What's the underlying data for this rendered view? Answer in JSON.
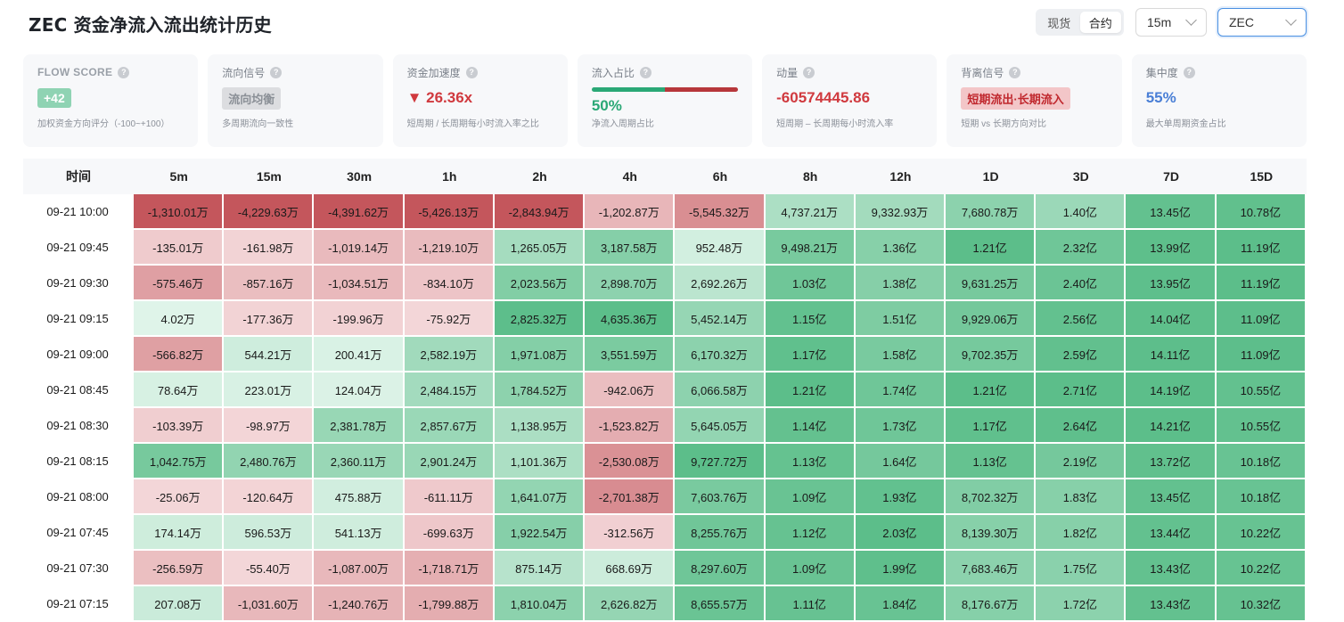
{
  "title": "ZEC 资金净流入流出统计历史",
  "market_toggle": {
    "options": [
      "现货",
      "合约"
    ],
    "active": 1
  },
  "interval_select": {
    "value": "15m"
  },
  "symbol_select": {
    "value": "ZEC"
  },
  "cards": [
    {
      "label": "FLOW SCORE",
      "value": "+42",
      "sub": "加权资金方向评分（-100~+100）"
    },
    {
      "label": "流向信号",
      "value": "流向均衡",
      "sub": "多周期流向一致性"
    },
    {
      "label": "资金加速度",
      "value": "▼ 26.36x",
      "sub": "短周期 / 长周期每小时流入率之比"
    },
    {
      "label": "流入占比",
      "value": "50%",
      "sub": "净流入周期占比",
      "inflow_fraction": 0.5
    },
    {
      "label": "动量",
      "value": "-60574445.86",
      "sub": "短周期 – 长周期每小时流入率"
    },
    {
      "label": "背离信号",
      "value": "短期流出·长期流入",
      "sub": "短期 vs 长期方向对比"
    },
    {
      "label": "集中度",
      "value": "55%",
      "sub": "最大单周期资金占比"
    }
  ],
  "colors": {
    "positive": "#2aa876",
    "negative": "#d0393e",
    "score_badge": "#8fd3b3",
    "neutral_badge": "#dcdde0",
    "divergence_badge": "#f3c6c8",
    "concentration": "#4a7fd6"
  },
  "table": {
    "columns": [
      "时间",
      "5m",
      "15m",
      "30m",
      "1h",
      "2h",
      "4h",
      "6h",
      "8h",
      "12h",
      "1D",
      "3D",
      "7D",
      "15D"
    ],
    "rows": [
      [
        "09-21 10:00",
        "-1,310.01万",
        "-4,229.63万",
        "-4,391.62万",
        "-5,426.13万",
        "-2,843.94万",
        "-1,202.87万",
        "-5,545.32万",
        "4,737.21万",
        "9,332.93万",
        "7,680.78万",
        "1.40亿",
        "13.45亿",
        "10.78亿"
      ],
      [
        "09-21 09:45",
        "-135.01万",
        "-161.98万",
        "-1,019.14万",
        "-1,219.10万",
        "1,265.05万",
        "3,187.58万",
        "952.48万",
        "9,498.21万",
        "1.36亿",
        "1.21亿",
        "2.32亿",
        "13.99亿",
        "11.19亿"
      ],
      [
        "09-21 09:30",
        "-575.46万",
        "-857.16万",
        "-1,034.51万",
        "-834.10万",
        "2,023.56万",
        "2,898.70万",
        "2,692.26万",
        "1.03亿",
        "1.38亿",
        "9,631.25万",
        "2.40亿",
        "13.95亿",
        "11.19亿"
      ],
      [
        "09-21 09:15",
        "4.02万",
        "-177.36万",
        "-199.96万",
        "-75.92万",
        "2,825.32万",
        "4,635.36万",
        "5,452.14万",
        "1.15亿",
        "1.51亿",
        "9,929.06万",
        "2.56亿",
        "14.04亿",
        "11.09亿"
      ],
      [
        "09-21 09:00",
        "-566.82万",
        "544.21万",
        "200.41万",
        "2,582.19万",
        "1,971.08万",
        "3,551.59万",
        "6,170.32万",
        "1.17亿",
        "1.58亿",
        "9,702.35万",
        "2.59亿",
        "14.11亿",
        "11.09亿"
      ],
      [
        "09-21 08:45",
        "78.64万",
        "223.01万",
        "124.04万",
        "2,484.15万",
        "1,784.52万",
        "-942.06万",
        "6,066.58万",
        "1.21亿",
        "1.74亿",
        "1.21亿",
        "2.71亿",
        "14.19亿",
        "10.55亿"
      ],
      [
        "09-21 08:30",
        "-103.39万",
        "-98.97万",
        "2,381.78万",
        "2,857.67万",
        "1,138.95万",
        "-1,523.82万",
        "5,645.05万",
        "1.14亿",
        "1.73亿",
        "1.17亿",
        "2.64亿",
        "14.21亿",
        "10.55亿"
      ],
      [
        "09-21 08:15",
        "1,042.75万",
        "2,480.76万",
        "2,360.11万",
        "2,901.24万",
        "1,101.36万",
        "-2,530.08万",
        "9,727.72万",
        "1.13亿",
        "1.64亿",
        "1.13亿",
        "2.19亿",
        "13.72亿",
        "10.18亿"
      ],
      [
        "09-21 08:00",
        "-25.06万",
        "-120.64万",
        "475.88万",
        "-611.11万",
        "1,641.07万",
        "-2,701.38万",
        "7,603.76万",
        "1.09亿",
        "1.93亿",
        "8,702.32万",
        "1.83亿",
        "13.45亿",
        "10.18亿"
      ],
      [
        "09-21 07:45",
        "174.14万",
        "596.53万",
        "541.13万",
        "-699.63万",
        "1,922.54万",
        "-312.56万",
        "8,255.76万",
        "1.12亿",
        "2.03亿",
        "8,139.30万",
        "1.82亿",
        "13.44亿",
        "10.22亿"
      ],
      [
        "09-21 07:30",
        "-256.59万",
        "-55.40万",
        "-1,087.00万",
        "-1,718.71万",
        "875.14万",
        "668.69万",
        "8,297.60万",
        "1.09亿",
        "1.99亿",
        "7,683.46万",
        "1.75亿",
        "13.43亿",
        "10.22亿"
      ],
      [
        "09-21 07:15",
        "207.08万",
        "-1,031.60万",
        "-1,240.76万",
        "-1,799.88万",
        "1,810.04万",
        "2,626.82万",
        "8,655.57万",
        "1.11亿",
        "1.84亿",
        "8,176.67万",
        "1.72亿",
        "13.43亿",
        "10.32亿"
      ]
    ]
  }
}
